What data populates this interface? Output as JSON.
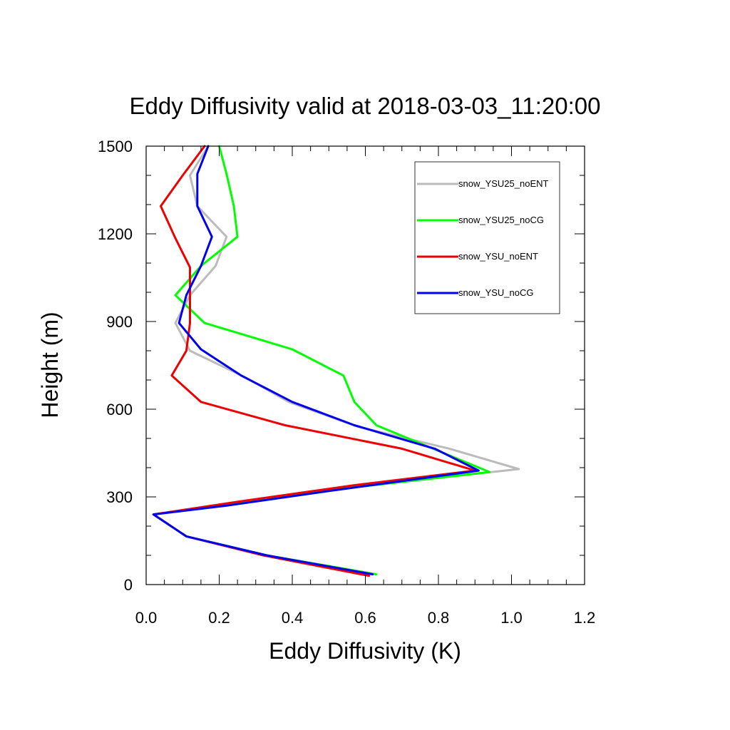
{
  "chart_data": {
    "type": "line",
    "title": "Eddy Diffusivity valid at 2018-03-03_11:20:00",
    "xlabel": "Eddy Diffusivity (K)",
    "ylabel": "Height (m)",
    "xlim": [
      0,
      1.2
    ],
    "ylim": [
      0,
      1500
    ],
    "x_ticks": [
      0.0,
      0.2,
      0.4,
      0.6,
      0.8,
      1.0,
      1.2
    ],
    "x_tick_labels": [
      "0.0",
      "0.2",
      "0.4",
      "0.6",
      "0.8",
      "1.0",
      "1.2"
    ],
    "y_ticks": [
      0,
      300,
      600,
      900,
      1200,
      1500
    ],
    "y_tick_labels": [
      "0",
      "300",
      "600",
      "900",
      "1200",
      "1500"
    ],
    "grid": false,
    "legend_position": "top-right",
    "series": [
      {
        "name": "snow_YSU25_noENT",
        "color": "#bbbbbb",
        "x": [
          0.62,
          0.33,
          0.11,
          0.02,
          0.2,
          0.47,
          1.02,
          0.83,
          0.58,
          0.39,
          0.27,
          0.12,
          0.08,
          0.12,
          0.19,
          0.22,
          0.14,
          0.12,
          0.17
        ],
        "y": [
          35,
          100,
          165,
          240,
          270,
          320,
          395,
          465,
          540,
          625,
          710,
          800,
          895,
          990,
          1090,
          1190,
          1295,
          1400,
          1500
        ]
      },
      {
        "name": "snow_YSU25_noCG",
        "color": "#00ff00",
        "x": [
          0.63,
          0.33,
          0.11,
          0.02,
          0.22,
          0.55,
          0.94,
          0.63,
          0.57,
          0.54,
          0.4,
          0.16,
          0.08,
          0.15,
          0.25,
          0.24,
          0.22,
          0.2
        ],
        "y": [
          35,
          100,
          165,
          240,
          275,
          330,
          385,
          545,
          625,
          715,
          805,
          895,
          990,
          1090,
          1190,
          1295,
          1405,
          1500
        ]
      },
      {
        "name": "snow_YSU_noENT",
        "color": "#ee0000",
        "x": [
          0.61,
          0.32,
          0.11,
          0.02,
          0.26,
          0.57,
          0.9,
          0.7,
          0.38,
          0.15,
          0.07,
          0.11,
          0.12,
          0.12,
          0.08,
          0.04,
          0.1,
          0.16
        ],
        "y": [
          30,
          100,
          165,
          240,
          285,
          340,
          390,
          465,
          545,
          625,
          715,
          800,
          895,
          1085,
          1185,
          1295,
          1400,
          1500
        ]
      },
      {
        "name": "snow_YSU_noCG",
        "color": "#0000ee",
        "x": [
          0.62,
          0.33,
          0.11,
          0.02,
          0.22,
          0.5,
          0.91,
          0.79,
          0.57,
          0.4,
          0.26,
          0.15,
          0.09,
          0.11,
          0.15,
          0.18,
          0.14,
          0.14,
          0.17
        ],
        "y": [
          35,
          100,
          165,
          240,
          270,
          320,
          390,
          465,
          545,
          625,
          715,
          805,
          895,
          990,
          1090,
          1190,
          1295,
          1405,
          1500
        ]
      }
    ]
  }
}
